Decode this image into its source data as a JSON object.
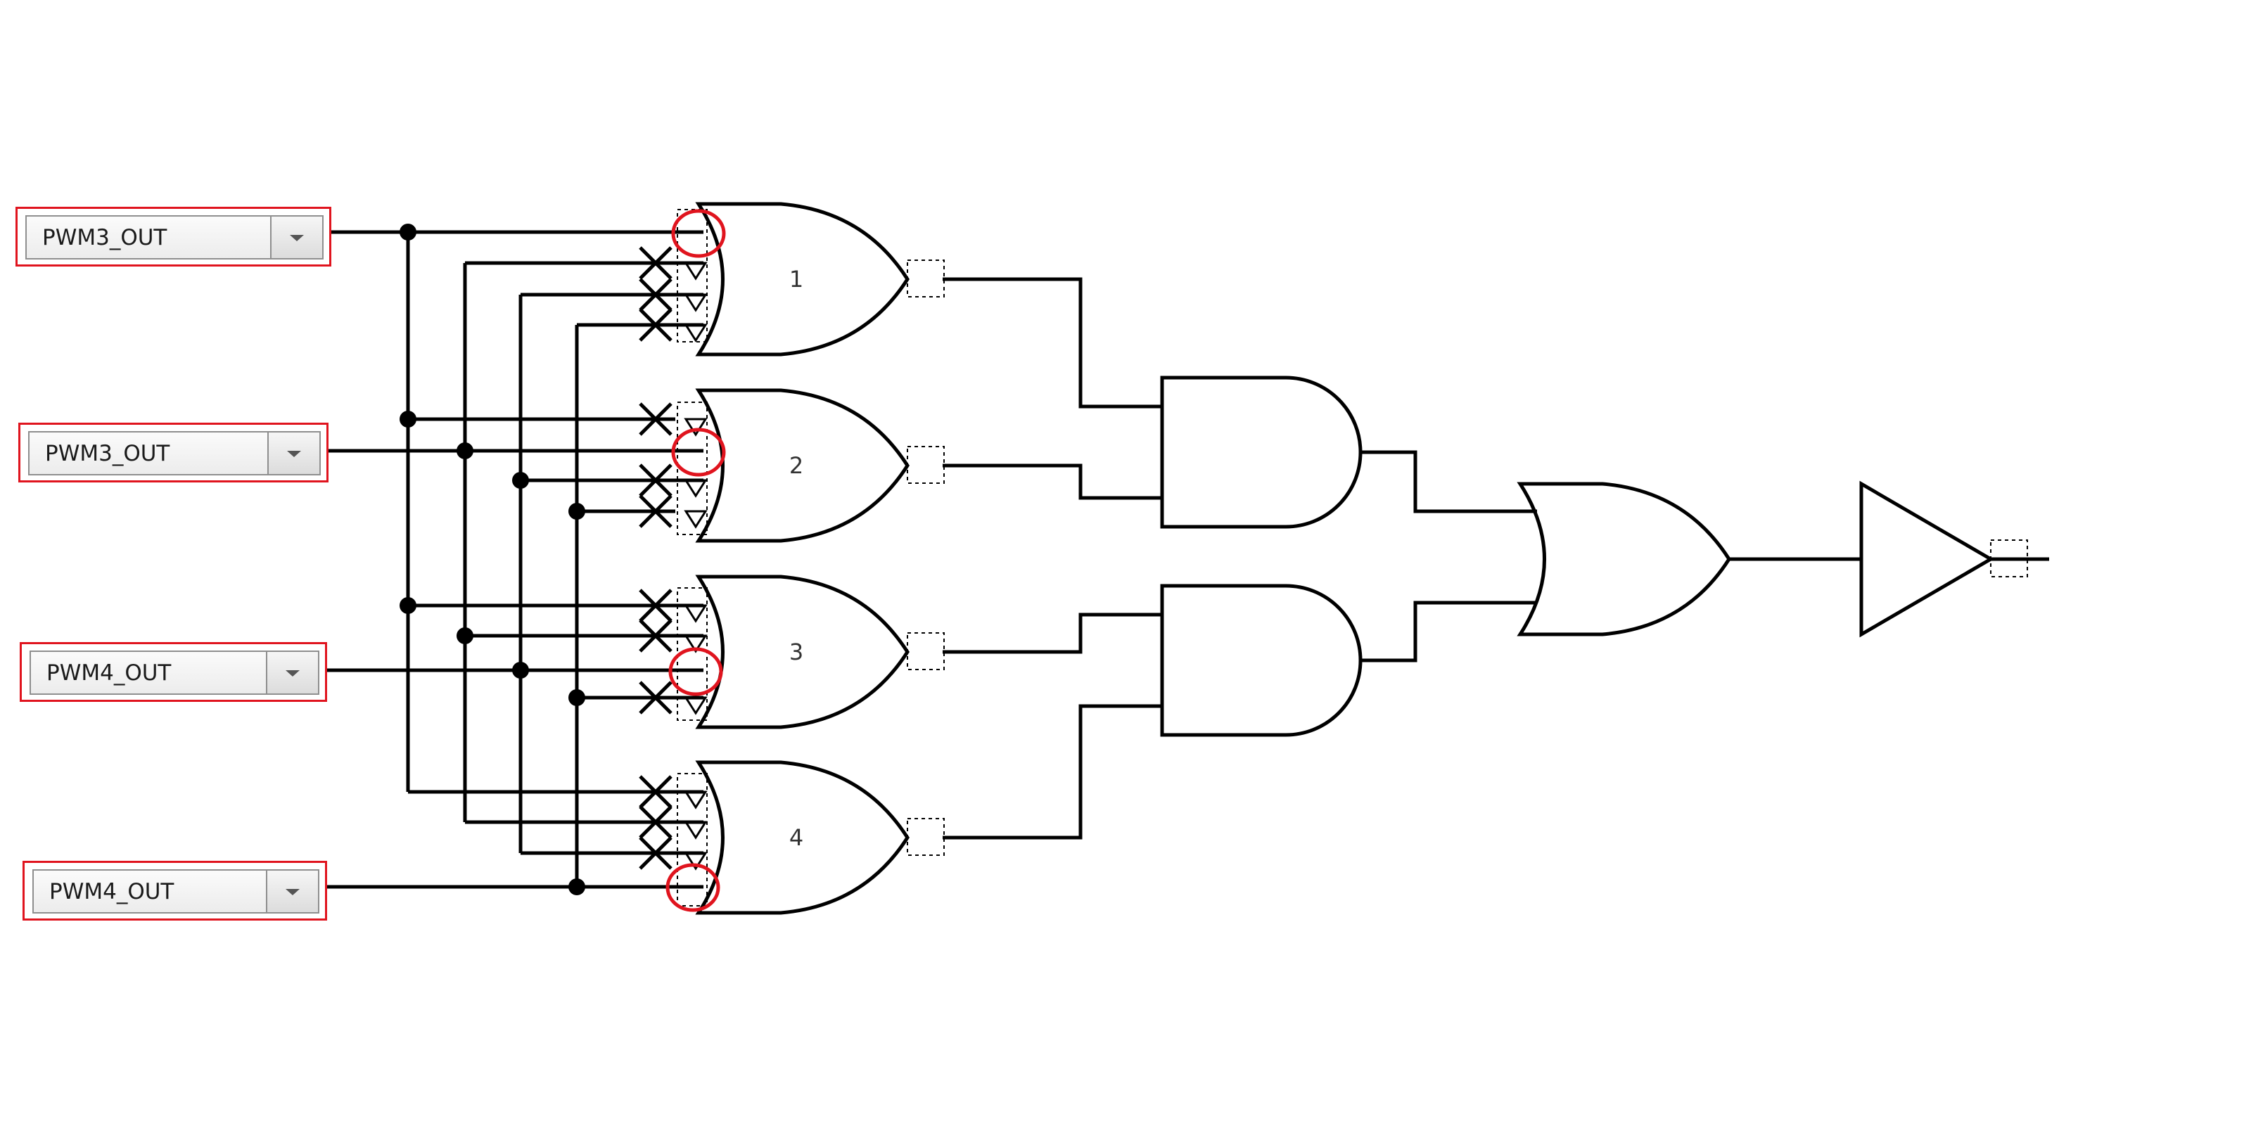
{
  "inputs": [
    {
      "value": "PWM3_OUT"
    },
    {
      "value": "PWM3_OUT"
    },
    {
      "value": "PWM4_OUT"
    },
    {
      "value": "PWM4_OUT"
    }
  ],
  "or_gates": [
    {
      "label": "1"
    },
    {
      "label": "2"
    },
    {
      "label": "3"
    },
    {
      "label": "4"
    }
  ],
  "icons": {
    "dropdown": "chevron-down-icon",
    "disabled_input": "x-mark-icon",
    "invert_marker": "invert-triangle-icon",
    "highlight": "red-circle-highlight"
  },
  "colors": {
    "wire": "#000000",
    "highlight": "#e0141e",
    "dropdown_border": "#8e8e8e"
  }
}
